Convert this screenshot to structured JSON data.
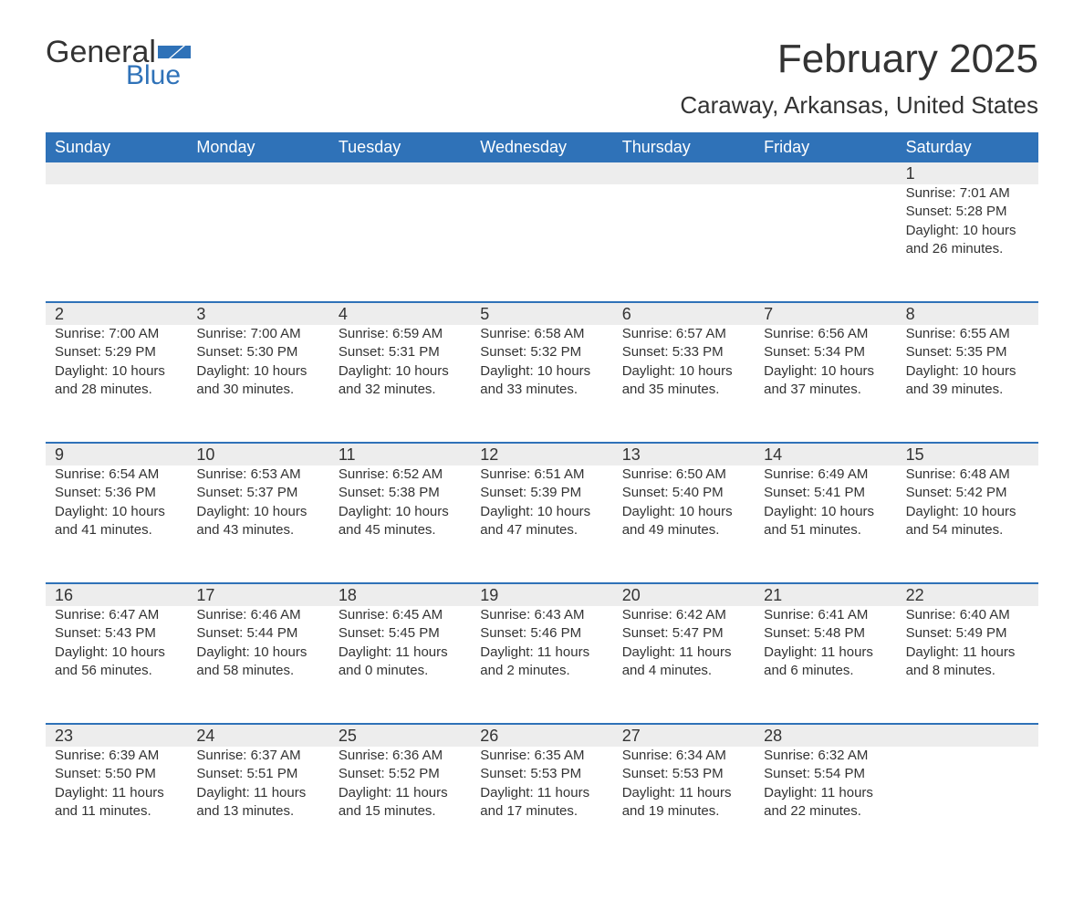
{
  "brand": {
    "word1": "General",
    "word2": "Blue",
    "flag_color": "#2f72b8"
  },
  "title": "February 2025",
  "location": "Caraway, Arkansas, United States",
  "colors": {
    "header_bg": "#2f72b8",
    "header_text": "#ffffff",
    "band_bg": "#ededed",
    "rule": "#2f72b8",
    "text": "#333333",
    "page_bg": "#ffffff"
  },
  "typography": {
    "title_fontsize": 44,
    "location_fontsize": 26,
    "header_fontsize": 18,
    "daynum_fontsize": 18,
    "body_fontsize": 15
  },
  "day_headers": [
    "Sunday",
    "Monday",
    "Tuesday",
    "Wednesday",
    "Thursday",
    "Friday",
    "Saturday"
  ],
  "weeks": [
    [
      {
        "n": "",
        "sunrise": "",
        "sunset": "",
        "daylight": ""
      },
      {
        "n": "",
        "sunrise": "",
        "sunset": "",
        "daylight": ""
      },
      {
        "n": "",
        "sunrise": "",
        "sunset": "",
        "daylight": ""
      },
      {
        "n": "",
        "sunrise": "",
        "sunset": "",
        "daylight": ""
      },
      {
        "n": "",
        "sunrise": "",
        "sunset": "",
        "daylight": ""
      },
      {
        "n": "",
        "sunrise": "",
        "sunset": "",
        "daylight": ""
      },
      {
        "n": "1",
        "sunrise": "Sunrise: 7:01 AM",
        "sunset": "Sunset: 5:28 PM",
        "daylight": "Daylight: 10 hours and 26 minutes."
      }
    ],
    [
      {
        "n": "2",
        "sunrise": "Sunrise: 7:00 AM",
        "sunset": "Sunset: 5:29 PM",
        "daylight": "Daylight: 10 hours and 28 minutes."
      },
      {
        "n": "3",
        "sunrise": "Sunrise: 7:00 AM",
        "sunset": "Sunset: 5:30 PM",
        "daylight": "Daylight: 10 hours and 30 minutes."
      },
      {
        "n": "4",
        "sunrise": "Sunrise: 6:59 AM",
        "sunset": "Sunset: 5:31 PM",
        "daylight": "Daylight: 10 hours and 32 minutes."
      },
      {
        "n": "5",
        "sunrise": "Sunrise: 6:58 AM",
        "sunset": "Sunset: 5:32 PM",
        "daylight": "Daylight: 10 hours and 33 minutes."
      },
      {
        "n": "6",
        "sunrise": "Sunrise: 6:57 AM",
        "sunset": "Sunset: 5:33 PM",
        "daylight": "Daylight: 10 hours and 35 minutes."
      },
      {
        "n": "7",
        "sunrise": "Sunrise: 6:56 AM",
        "sunset": "Sunset: 5:34 PM",
        "daylight": "Daylight: 10 hours and 37 minutes."
      },
      {
        "n": "8",
        "sunrise": "Sunrise: 6:55 AM",
        "sunset": "Sunset: 5:35 PM",
        "daylight": "Daylight: 10 hours and 39 minutes."
      }
    ],
    [
      {
        "n": "9",
        "sunrise": "Sunrise: 6:54 AM",
        "sunset": "Sunset: 5:36 PM",
        "daylight": "Daylight: 10 hours and 41 minutes."
      },
      {
        "n": "10",
        "sunrise": "Sunrise: 6:53 AM",
        "sunset": "Sunset: 5:37 PM",
        "daylight": "Daylight: 10 hours and 43 minutes."
      },
      {
        "n": "11",
        "sunrise": "Sunrise: 6:52 AM",
        "sunset": "Sunset: 5:38 PM",
        "daylight": "Daylight: 10 hours and 45 minutes."
      },
      {
        "n": "12",
        "sunrise": "Sunrise: 6:51 AM",
        "sunset": "Sunset: 5:39 PM",
        "daylight": "Daylight: 10 hours and 47 minutes."
      },
      {
        "n": "13",
        "sunrise": "Sunrise: 6:50 AM",
        "sunset": "Sunset: 5:40 PM",
        "daylight": "Daylight: 10 hours and 49 minutes."
      },
      {
        "n": "14",
        "sunrise": "Sunrise: 6:49 AM",
        "sunset": "Sunset: 5:41 PM",
        "daylight": "Daylight: 10 hours and 51 minutes."
      },
      {
        "n": "15",
        "sunrise": "Sunrise: 6:48 AM",
        "sunset": "Sunset: 5:42 PM",
        "daylight": "Daylight: 10 hours and 54 minutes."
      }
    ],
    [
      {
        "n": "16",
        "sunrise": "Sunrise: 6:47 AM",
        "sunset": "Sunset: 5:43 PM",
        "daylight": "Daylight: 10 hours and 56 minutes."
      },
      {
        "n": "17",
        "sunrise": "Sunrise: 6:46 AM",
        "sunset": "Sunset: 5:44 PM",
        "daylight": "Daylight: 10 hours and 58 minutes."
      },
      {
        "n": "18",
        "sunrise": "Sunrise: 6:45 AM",
        "sunset": "Sunset: 5:45 PM",
        "daylight": "Daylight: 11 hours and 0 minutes."
      },
      {
        "n": "19",
        "sunrise": "Sunrise: 6:43 AM",
        "sunset": "Sunset: 5:46 PM",
        "daylight": "Daylight: 11 hours and 2 minutes."
      },
      {
        "n": "20",
        "sunrise": "Sunrise: 6:42 AM",
        "sunset": "Sunset: 5:47 PM",
        "daylight": "Daylight: 11 hours and 4 minutes."
      },
      {
        "n": "21",
        "sunrise": "Sunrise: 6:41 AM",
        "sunset": "Sunset: 5:48 PM",
        "daylight": "Daylight: 11 hours and 6 minutes."
      },
      {
        "n": "22",
        "sunrise": "Sunrise: 6:40 AM",
        "sunset": "Sunset: 5:49 PM",
        "daylight": "Daylight: 11 hours and 8 minutes."
      }
    ],
    [
      {
        "n": "23",
        "sunrise": "Sunrise: 6:39 AM",
        "sunset": "Sunset: 5:50 PM",
        "daylight": "Daylight: 11 hours and 11 minutes."
      },
      {
        "n": "24",
        "sunrise": "Sunrise: 6:37 AM",
        "sunset": "Sunset: 5:51 PM",
        "daylight": "Daylight: 11 hours and 13 minutes."
      },
      {
        "n": "25",
        "sunrise": "Sunrise: 6:36 AM",
        "sunset": "Sunset: 5:52 PM",
        "daylight": "Daylight: 11 hours and 15 minutes."
      },
      {
        "n": "26",
        "sunrise": "Sunrise: 6:35 AM",
        "sunset": "Sunset: 5:53 PM",
        "daylight": "Daylight: 11 hours and 17 minutes."
      },
      {
        "n": "27",
        "sunrise": "Sunrise: 6:34 AM",
        "sunset": "Sunset: 5:53 PM",
        "daylight": "Daylight: 11 hours and 19 minutes."
      },
      {
        "n": "28",
        "sunrise": "Sunrise: 6:32 AM",
        "sunset": "Sunset: 5:54 PM",
        "daylight": "Daylight: 11 hours and 22 minutes."
      },
      {
        "n": "",
        "sunrise": "",
        "sunset": "",
        "daylight": ""
      }
    ]
  ]
}
